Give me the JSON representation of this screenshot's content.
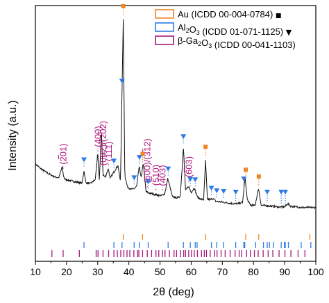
{
  "chart_data": {
    "type": "line",
    "xlabel": "2θ (deg)",
    "ylabel": "Intensity (a.u.)",
    "xlim": [
      10,
      100
    ],
    "x_ticks": [
      10,
      20,
      30,
      40,
      50,
      60,
      70,
      80,
      90,
      100
    ],
    "y_ticks_shown": false,
    "legend_position": "top-right",
    "colors": {
      "Au": "#f28522",
      "Al2O3": "#2e7be6",
      "Ga2O3": "#a3187a",
      "pattern": "#111111"
    },
    "legend": [
      {
        "key": "Au",
        "parts": [
          [
            "Au (ICDD 00-004-0784) ",
            "n"
          ]
        ],
        "marker": "■"
      },
      {
        "key": "Al2O3",
        "parts": [
          [
            "Al",
            "n"
          ],
          [
            "2",
            "sub"
          ],
          [
            "O",
            "n"
          ],
          [
            "3",
            "sub"
          ],
          [
            " (ICDD 01-071-1125) ",
            "n"
          ]
        ],
        "marker": "▼"
      },
      {
        "key": "Ga2O3",
        "parts": [
          [
            "β-Ga",
            "n"
          ],
          [
            "2",
            "sub"
          ],
          [
            "O",
            "n"
          ],
          [
            "3",
            "sub"
          ],
          [
            " (ICDD 00-041-1103)",
            "n"
          ]
        ],
        "marker": ""
      }
    ],
    "pattern": {
      "x": [
        10,
        12,
        14,
        16,
        17.5,
        18.6,
        19,
        19.5,
        21,
        23,
        25,
        25.6,
        26.2,
        27.5,
        29.2,
        30,
        30.5,
        31.2,
        31.7,
        32.4,
        33.4,
        34,
        35.2,
        36.5,
        37.3,
        38.2,
        38.7,
        39.5,
        40.5,
        41.5,
        42.5,
        43.3,
        44,
        44.6,
        45.5,
        46.5,
        47.5,
        49,
        50.5,
        51.5,
        52.5,
        54,
        55.5,
        56.5,
        57.5,
        58.2,
        59.2,
        60,
        61,
        62,
        63,
        64,
        64.6,
        65.2,
        66,
        67,
        68,
        69,
        70.5,
        72,
        73.5,
        75,
        76.5,
        77.3,
        78,
        79,
        80.5,
        81.6,
        82.5,
        84,
        86,
        88,
        90,
        91,
        92,
        94,
        96,
        98,
        100
      ],
      "y": [
        100,
        92,
        86,
        81,
        79,
        96,
        82,
        77,
        75,
        73,
        71,
        90,
        72,
        70,
        76,
        116,
        75,
        150,
        84,
        80,
        93,
        78,
        88,
        98,
        73,
        318,
        83,
        66,
        62,
        62,
        66,
        96,
        79,
        102,
        58,
        56,
        55,
        53,
        52,
        55,
        78,
        50,
        49,
        51,
        125,
        60,
        66,
        57,
        64,
        50,
        47,
        46,
        105,
        47,
        46,
        48,
        43,
        43,
        42,
        41,
        40,
        40,
        42,
        80,
        46,
        38,
        37,
        63,
        37,
        37,
        36,
        35,
        35,
        40,
        36,
        35,
        34,
        34,
        34
      ]
    },
    "annotations": {
      "ga2o3_peaks": [
        {
          "x": 18.9,
          "label": "(201)",
          "bar": [
            1
          ]
        },
        {
          "x": 30.05,
          "label": "(400)",
          "bar": []
        },
        {
          "x": 31.7,
          "label": "(002)/(202)",
          "bar": [
            6
          ]
        },
        {
          "x": 33.5,
          "label": "(111)",
          "bar": [
            1
          ]
        },
        {
          "x": 45.9,
          "label": "(600)/(312)",
          "bar": [
            6
          ]
        },
        {
          "x": 48.7,
          "label": "(510)",
          "bar": [
            1
          ]
        },
        {
          "x": 50.8,
          "label": "(403)",
          "bar": [
            1
          ]
        },
        {
          "x": 59.2,
          "label": "(603)",
          "bar": [
            1
          ]
        }
      ],
      "au_markers": [
        38.2,
        44.4,
        64.6,
        77.5,
        81.7
      ],
      "al2o3_markers": [
        25.6,
        35.2,
        37.8,
        41.7,
        43.4,
        46.2,
        52.6,
        57.5,
        59.7,
        61.3,
        66.5,
        68.2,
        70.4,
        74.3,
        76.9,
        84.4,
        88.9,
        90.2
      ]
    },
    "reference_ticks": {
      "Au": [
        38.2,
        44.4,
        64.6,
        77.5,
        81.7,
        98.1
      ],
      "Al2O3": [
        25.6,
        35.2,
        37.8,
        41.7,
        43.4,
        46.2,
        52.6,
        57.5,
        59.7,
        61.3,
        61.9,
        66.5,
        68.2,
        70.4,
        74.3,
        76.9,
        77.2,
        80.7,
        83.2,
        84.4,
        85.1,
        86.4,
        88.9,
        89.9,
        90.2,
        91.2,
        95.3,
        98.4
      ],
      "Ga2O3": [
        15.3,
        18.9,
        24.1,
        29.5,
        30.1,
        31.7,
        33.5,
        35.2,
        36.3,
        37.4,
        38.4,
        39.4,
        40.3,
        41.6,
        42.8,
        43.2,
        44.4,
        45.9,
        47.3,
        48.7,
        49.6,
        50.8,
        51.6,
        53.0,
        54.5,
        55.3,
        56.6,
        57.6,
        58.2,
        59.2,
        60.1,
        61.0,
        62.0,
        63.3,
        64.2,
        64.9,
        66.1,
        67.5,
        68.3,
        69.6,
        70.9,
        72.5,
        74.1,
        75.4,
        76.2,
        77.8,
        79.0,
        80.3,
        81.5,
        83.1,
        84.7,
        86.2,
        88.2,
        90.1,
        92.0,
        94.3,
        96.5
      ]
    }
  }
}
